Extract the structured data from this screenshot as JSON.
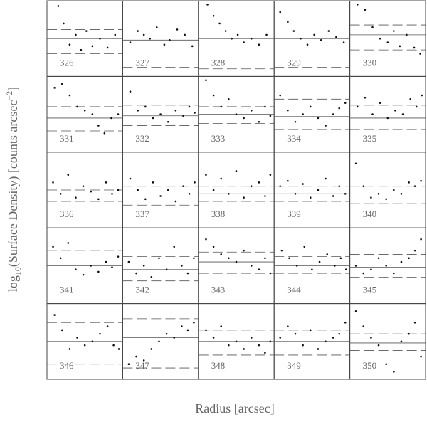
{
  "figure": {
    "xlabel": "Radius [arcsec]",
    "ylabel": {
      "pre": "log",
      "sub": "10",
      "main": "(Surface Density) [counts arcsec",
      "sup": "−2",
      "end": "]"
    }
  },
  "chart_data": [
    {
      "type": "scatter",
      "title": "326",
      "xlim": [
        0,
        1
      ],
      "ylim": [
        0,
        1
      ],
      "hlines": [
        0.5,
        0.62,
        0.3
      ],
      "x": [
        0.15,
        0.22,
        0.3,
        0.38,
        0.45,
        0.52,
        0.6,
        0.7,
        0.8,
        0.9
      ],
      "values": [
        0.93,
        0.7,
        0.42,
        0.55,
        0.35,
        0.6,
        0.4,
        0.5,
        0.38,
        0.55
      ]
    },
    {
      "type": "scatter",
      "title": "327",
      "xlim": [
        0,
        1
      ],
      "ylim": [
        0,
        1
      ],
      "hlines": [
        0.48,
        0.6,
        0.12
      ],
      "x": [
        0.1,
        0.2,
        0.28,
        0.36,
        0.45,
        0.55,
        0.62,
        0.72,
        0.82,
        0.92
      ],
      "values": [
        0.45,
        0.6,
        0.55,
        0.5,
        0.65,
        0.42,
        0.48,
        0.62,
        0.55,
        0.4
      ]
    },
    {
      "type": "scatter",
      "title": "328",
      "xlim": [
        0,
        1
      ],
      "ylim": [
        0,
        1
      ],
      "hlines": [
        0.5,
        0.6,
        0.1
      ],
      "x": [
        0.12,
        0.2,
        0.28,
        0.36,
        0.44,
        0.52,
        0.6,
        0.7,
        0.8,
        0.9
      ],
      "values": [
        0.95,
        0.8,
        0.7,
        0.6,
        0.5,
        0.55,
        0.45,
        0.5,
        0.42,
        0.55
      ]
    },
    {
      "type": "scatter",
      "title": "329",
      "xlim": [
        0,
        1
      ],
      "ylim": [
        0,
        1
      ],
      "hlines": [
        0.5,
        0.6,
        0.12
      ],
      "x": [
        0.08,
        0.18,
        0.26,
        0.35,
        0.44,
        0.53,
        0.62,
        0.72,
        0.82,
        0.92
      ],
      "values": [
        0.85,
        0.72,
        0.6,
        0.5,
        0.42,
        0.55,
        0.48,
        0.6,
        0.52,
        0.45
      ]
    },
    {
      "type": "scatter",
      "title": "330",
      "xlim": [
        0,
        1
      ],
      "ylim": [
        0,
        1
      ],
      "hlines": [
        0.55,
        0.68,
        0.35
      ],
      "x": [
        0.1,
        0.2,
        0.3,
        0.4,
        0.5,
        0.58,
        0.66,
        0.75,
        0.85,
        0.93
      ],
      "values": [
        0.95,
        0.88,
        0.65,
        0.5,
        0.45,
        0.6,
        0.4,
        0.55,
        0.38,
        0.3
      ]
    },
    {
      "type": "scatter",
      "title": "331",
      "xlim": [
        0,
        1
      ],
      "ylim": [
        0,
        1
      ],
      "hlines": [
        0.45,
        0.6,
        0.28
      ],
      "x": [
        0.1,
        0.2,
        0.3,
        0.4,
        0.5,
        0.6,
        0.68,
        0.76,
        0.85,
        0.94
      ],
      "values": [
        0.85,
        0.9,
        0.75,
        0.6,
        0.55,
        0.5,
        0.35,
        0.25,
        0.45,
        0.5
      ]
    },
    {
      "type": "scatter",
      "title": "332",
      "xlim": [
        0,
        1
      ],
      "ylim": [
        0,
        1
      ],
      "hlines": [
        0.48,
        0.62,
        0.35
      ],
      "x": [
        0.1,
        0.2,
        0.3,
        0.4,
        0.5,
        0.6,
        0.7,
        0.8,
        0.88,
        0.95
      ],
      "values": [
        0.8,
        0.55,
        0.6,
        0.45,
        0.5,
        0.4,
        0.55,
        0.48,
        0.6,
        0.52
      ]
    },
    {
      "type": "scatter",
      "title": "333",
      "xlim": [
        0,
        1
      ],
      "ylim": [
        0,
        1
      ],
      "hlines": [
        0.5,
        0.6,
        0.38
      ],
      "x": [
        0.1,
        0.2,
        0.3,
        0.4,
        0.5,
        0.6,
        0.7,
        0.8,
        0.88,
        0.95
      ],
      "values": [
        0.95,
        0.75,
        0.6,
        0.7,
        0.5,
        0.45,
        0.55,
        0.4,
        0.6,
        0.48
      ]
    },
    {
      "type": "scatter",
      "title": "334",
      "xlim": [
        0,
        1
      ],
      "ylim": [
        0,
        1
      ],
      "hlines": [
        0.47,
        0.7,
        0.3
      ],
      "x": [
        0.08,
        0.18,
        0.28,
        0.38,
        0.48,
        0.58,
        0.68,
        0.78,
        0.86,
        0.94
      ],
      "values": [
        0.75,
        0.55,
        0.4,
        0.5,
        0.6,
        0.45,
        0.35,
        0.5,
        0.58,
        0.65
      ]
    },
    {
      "type": "scatter",
      "title": "335",
      "xlim": [
        0,
        1
      ],
      "ylim": [
        0,
        1
      ],
      "hlines": [
        0.45,
        0.62,
        0.3
      ],
      "x": [
        0.1,
        0.2,
        0.3,
        0.4,
        0.5,
        0.6,
        0.7,
        0.8,
        0.88,
        0.95
      ],
      "values": [
        0.6,
        0.72,
        0.5,
        0.65,
        0.45,
        0.55,
        0.5,
        0.7,
        0.6,
        0.75
      ]
    },
    {
      "type": "scatter",
      "title": "336",
      "xlim": [
        0,
        1
      ],
      "ylim": [
        0,
        1
      ],
      "hlines": [
        0.42,
        0.5,
        0.35
      ],
      "x": [
        0.08,
        0.18,
        0.28,
        0.38,
        0.48,
        0.58,
        0.68,
        0.78,
        0.86,
        0.94
      ],
      "values": [
        0.6,
        0.45,
        0.7,
        0.4,
        0.55,
        0.48,
        0.38,
        0.6,
        0.45,
        0.5
      ]
    },
    {
      "type": "scatter",
      "title": "337",
      "xlim": [
        0,
        1
      ],
      "ylim": [
        0,
        1
      ],
      "hlines": [
        0.42,
        0.55,
        0.3
      ],
      "x": [
        0.1,
        0.2,
        0.3,
        0.4,
        0.5,
        0.6,
        0.7,
        0.8,
        0.88,
        0.95
      ],
      "values": [
        0.65,
        0.5,
        0.38,
        0.6,
        0.42,
        0.5,
        0.35,
        0.55,
        0.45,
        0.6
      ]
    },
    {
      "type": "scatter",
      "title": "338",
      "xlim": [
        0,
        1
      ],
      "ylim": [
        0,
        1
      ],
      "hlines": [
        0.45,
        0.55,
        0.35
      ],
      "x": [
        0.1,
        0.2,
        0.3,
        0.4,
        0.5,
        0.6,
        0.7,
        0.8,
        0.88,
        0.95
      ],
      "values": [
        0.7,
        0.5,
        0.65,
        0.45,
        0.75,
        0.4,
        0.55,
        0.6,
        0.42,
        0.7
      ]
    },
    {
      "type": "scatter",
      "title": "339",
      "xlim": [
        0,
        1
      ],
      "ylim": [
        0,
        1
      ],
      "hlines": [
        0.45,
        0.55,
        0.35
      ],
      "x": [
        0.08,
        0.18,
        0.28,
        0.38,
        0.48,
        0.58,
        0.68,
        0.78,
        0.86,
        0.94
      ],
      "values": [
        0.55,
        0.62,
        0.45,
        0.58,
        0.4,
        0.5,
        0.65,
        0.42,
        0.55,
        0.45
      ]
    },
    {
      "type": "scatter",
      "title": "340",
      "xlim": [
        0,
        1
      ],
      "ylim": [
        0,
        1
      ],
      "hlines": [
        0.42,
        0.55,
        0.32
      ],
      "x": [
        0.08,
        0.18,
        0.28,
        0.38,
        0.48,
        0.58,
        0.68,
        0.78,
        0.86,
        0.94
      ],
      "values": [
        0.85,
        0.55,
        0.4,
        0.45,
        0.38,
        0.5,
        0.45,
        0.6,
        0.55,
        0.62
      ]
    },
    {
      "type": "scatter",
      "title": "341",
      "xlim": [
        0,
        1
      ],
      "ylim": [
        0,
        1
      ],
      "hlines": [
        0.5,
        0.7,
        0.15
      ],
      "x": [
        0.08,
        0.18,
        0.28,
        0.38,
        0.48,
        0.58,
        0.68,
        0.78,
        0.86,
        0.94
      ],
      "values": [
        0.75,
        0.6,
        0.8,
        0.45,
        0.38,
        0.5,
        0.42,
        0.55,
        0.48,
        0.62
      ]
    },
    {
      "type": "scatter",
      "title": "342",
      "xlim": [
        0,
        1
      ],
      "ylim": [
        0,
        1
      ],
      "hlines": [
        0.45,
        0.62,
        0.3
      ],
      "x": [
        0.08,
        0.18,
        0.28,
        0.38,
        0.48,
        0.58,
        0.68,
        0.78,
        0.86,
        0.94
      ],
      "values": [
        0.55,
        0.4,
        0.5,
        0.35,
        0.6,
        0.45,
        0.75,
        0.5,
        0.4,
        0.6
      ]
    },
    {
      "type": "scatter",
      "title": "343",
      "xlim": [
        0,
        1
      ],
      "ylim": [
        0,
        1
      ],
      "hlines": [
        0.55,
        0.68,
        0.4
      ],
      "x": [
        0.1,
        0.2,
        0.3,
        0.4,
        0.5,
        0.6,
        0.7,
        0.8,
        0.88,
        0.95
      ],
      "values": [
        0.85,
        0.75,
        0.65,
        0.6,
        0.55,
        0.7,
        0.5,
        0.45,
        0.6,
        0.4
      ]
    },
    {
      "type": "scatter",
      "title": "344",
      "xlim": [
        0,
        1
      ],
      "ylim": [
        0,
        1
      ],
      "hlines": [
        0.5,
        0.62,
        0.4
      ],
      "x": [
        0.1,
        0.2,
        0.3,
        0.4,
        0.5,
        0.6,
        0.7,
        0.8,
        0.88,
        0.95
      ],
      "values": [
        0.7,
        0.6,
        0.5,
        0.75,
        0.45,
        0.55,
        0.65,
        0.5,
        0.6,
        0.45
      ]
    },
    {
      "type": "scatter",
      "title": "345",
      "xlim": [
        0,
        1
      ],
      "ylim": [
        0,
        1
      ],
      "hlines": [
        0.48,
        0.65,
        0.35
      ],
      "x": [
        0.08,
        0.18,
        0.28,
        0.38,
        0.48,
        0.58,
        0.68,
        0.78,
        0.86,
        0.94
      ],
      "values": [
        0.5,
        0.4,
        0.45,
        0.6,
        0.5,
        0.4,
        0.55,
        0.6,
        0.7,
        0.85
      ]
    },
    {
      "type": "scatter",
      "title": "346",
      "xlim": [
        0,
        1
      ],
      "ylim": [
        0,
        1
      ],
      "hlines": [
        0.5,
        0.75,
        0.2
      ],
      "x": [
        0.1,
        0.2,
        0.3,
        0.4,
        0.5,
        0.6,
        0.7,
        0.8,
        0.88,
        0.95
      ],
      "values": [
        0.85,
        0.65,
        0.4,
        0.55,
        0.45,
        0.5,
        0.6,
        0.7,
        0.45,
        0.4
      ]
    },
    {
      "type": "scatter",
      "title": "347",
      "xlim": [
        0,
        1
      ],
      "ylim": [
        0,
        1
      ],
      "hlines": [
        0.55,
        0.8,
        0.15
      ],
      "x": [
        0.08,
        0.18,
        0.28,
        0.38,
        0.48,
        0.58,
        0.68,
        0.78,
        0.86,
        0.94
      ],
      "values": [
        0.2,
        0.3,
        0.25,
        0.4,
        0.5,
        0.6,
        0.55,
        0.7,
        0.65,
        0.75
      ]
    },
    {
      "type": "scatter",
      "title": "348",
      "xlim": [
        0,
        1
      ],
      "ylim": [
        0,
        1
      ],
      "hlines": [
        0.5,
        0.65,
        0.32
      ],
      "x": [
        0.1,
        0.2,
        0.3,
        0.4,
        0.5,
        0.6,
        0.7,
        0.8,
        0.88,
        0.95
      ],
      "values": [
        0.65,
        0.55,
        0.7,
        0.45,
        0.5,
        0.4,
        0.55,
        0.45,
        0.35,
        0.5
      ]
    },
    {
      "type": "scatter",
      "title": "349",
      "xlim": [
        0,
        1
      ],
      "ylim": [
        0,
        1
      ],
      "hlines": [
        0.5,
        0.65,
        0.32
      ],
      "x": [
        0.08,
        0.18,
        0.28,
        0.38,
        0.48,
        0.58,
        0.68,
        0.78,
        0.86,
        0.94
      ],
      "values": [
        0.55,
        0.7,
        0.6,
        0.45,
        0.65,
        0.4,
        0.5,
        0.55,
        0.6,
        0.75
      ]
    },
    {
      "type": "scatter",
      "title": "350",
      "xlim": [
        0,
        1
      ],
      "ylim": [
        0,
        1
      ],
      "hlines": [
        0.48,
        0.6,
        0.38
      ],
      "x": [
        0.08,
        0.18,
        0.28,
        0.38,
        0.48,
        0.58,
        0.68,
        0.78,
        0.86,
        0.94
      ],
      "values": [
        0.9,
        0.7,
        0.55,
        0.45,
        0.2,
        0.1,
        0.5,
        0.6,
        0.75,
        0.3
      ]
    }
  ]
}
